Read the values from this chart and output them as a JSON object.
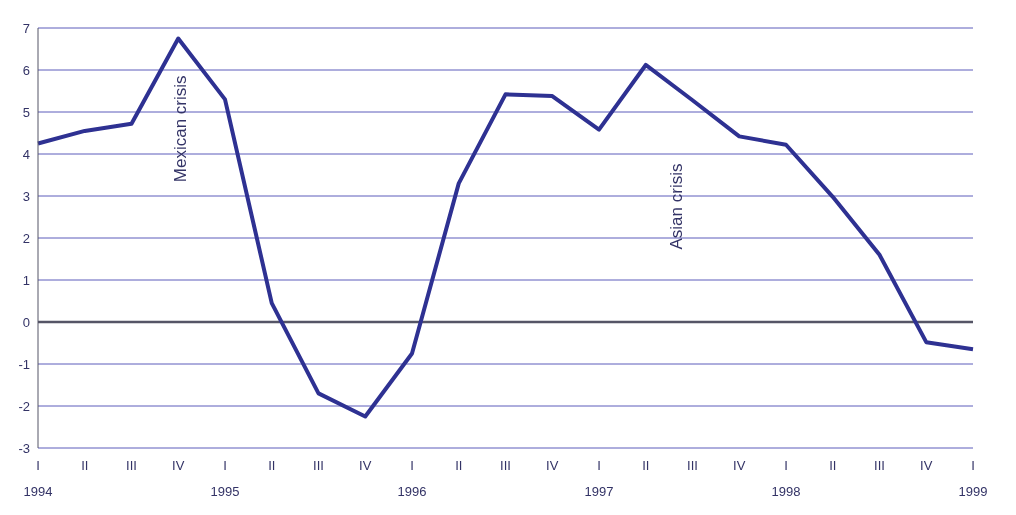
{
  "chart_data": {
    "type": "line",
    "categories": [
      "I 1994",
      "II",
      "III",
      "IV",
      "I 1995",
      "II",
      "III",
      "IV",
      "I 1996",
      "II",
      "III",
      "IV",
      "I 1997",
      "II",
      "III",
      "IV",
      "I 1998",
      "II",
      "III",
      "IV",
      "I 1999"
    ],
    "series": [
      {
        "color": "#2e3192",
        "values": [
          4.25,
          4.55,
          4.72,
          6.75,
          5.3,
          0.45,
          -1.7,
          -2.25,
          -0.75,
          3.3,
          5.42,
          5.38,
          4.58,
          6.12,
          5.28,
          4.42,
          4.22,
          2.98,
          1.6,
          -0.48,
          -0.65
        ]
      }
    ],
    "ylim": [
      -3,
      7
    ],
    "yticks": [
      -3,
      -2,
      -1,
      0,
      1,
      2,
      3,
      4,
      5,
      6,
      7
    ],
    "grid": "y",
    "marker": "none",
    "line_style": "solid",
    "ref_lines": [
      {
        "axis": "y",
        "value": 0,
        "color": "#555566"
      }
    ],
    "annotations": [
      "Mexican crisis",
      "Asian crisis"
    ]
  }
}
